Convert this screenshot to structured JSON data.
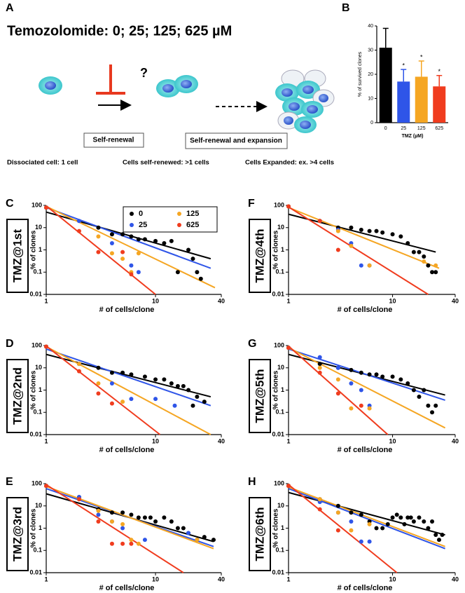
{
  "diagram": {
    "panel_label": "A",
    "title": "Temozolomide: 0; 25; 125; 625 µM",
    "question": "?",
    "boxes": [
      "Self-renewal",
      "Self-renewal and expansion"
    ],
    "captions": [
      "Dissociated cell: 1 cell",
      "Cells self-renewed: >1 cells",
      "Cells Expanded: ex. >4 cells"
    ]
  },
  "chart_data": [
    {
      "type": "bar",
      "panel_label": "B",
      "ylabel": "% of survived clones",
      "xlabel": "TMZ (µM)",
      "categories": [
        "0",
        "25",
        "125",
        "625"
      ],
      "values": [
        31,
        17,
        19,
        15
      ],
      "errors": [
        8,
        5,
        6.5,
        4.5
      ],
      "colors": [
        "#000000",
        "#2f55e8",
        "#f5a623",
        "#f03c1e"
      ],
      "value_annotations": [
        null,
        "*",
        "*",
        "*"
      ],
      "ylim": [
        0,
        40
      ],
      "yticks": [
        0,
        10,
        20,
        30,
        40
      ]
    },
    {
      "type": "scatter",
      "panel_label": "C",
      "tag": "TMZ@1st",
      "ylabel": "% of clones",
      "xlabel": "# of cells/clone",
      "log_scale": true,
      "legend": "top-right",
      "xlim": [
        1,
        40
      ],
      "xticks": [
        1,
        10,
        40
      ],
      "ylim": [
        0.01,
        100
      ],
      "yticks": [
        0.01,
        0.1,
        1,
        10,
        100
      ],
      "series": [
        {
          "name": "0",
          "color": "#000000",
          "x": [
            1,
            3,
            4,
            5,
            6,
            7,
            8,
            10,
            12,
            14,
            16,
            20,
            22,
            24,
            26
          ],
          "values": [
            80,
            10,
            5,
            5,
            4,
            3,
            3,
            2.5,
            2,
            2.5,
            0.1,
            1,
            0.4,
            0.1,
            0.05
          ],
          "fit_x": [
            1,
            32
          ],
          "fit_values": [
            50,
            0.4
          ]
        },
        {
          "name": "25",
          "color": "#2f55e8",
          "x": [
            1,
            2,
            4,
            6,
            7
          ],
          "values": [
            80,
            20,
            2,
            0.2,
            0.1
          ],
          "fit_x": [
            1,
            32
          ],
          "fit_values": [
            80,
            0.15
          ]
        },
        {
          "name": "125",
          "color": "#f5a623",
          "x": [
            1,
            3,
            4,
            5,
            6,
            7
          ],
          "values": [
            80,
            4,
            0.7,
            0.4,
            0.1,
            0.7
          ],
          "fit_x": [
            1,
            35
          ],
          "fit_values": [
            90,
            0.02
          ]
        },
        {
          "name": "625",
          "color": "#f03c1e",
          "x": [
            1,
            2,
            3,
            5,
            6
          ],
          "values": [
            80,
            7,
            0.8,
            0.8,
            0.08
          ],
          "fit_x": [
            1,
            10
          ],
          "fit_values": [
            95,
            0.01
          ]
        }
      ]
    },
    {
      "type": "scatter",
      "panel_label": "D",
      "tag": "TMZ@2nd",
      "ylabel": "% of clones",
      "xlabel": "# of cells/clone",
      "log_scale": true,
      "xlim": [
        1,
        40
      ],
      "xticks": [
        1,
        10,
        40
      ],
      "ylim": [
        0.01,
        100
      ],
      "yticks": [
        0.01,
        0.1,
        1,
        10,
        100
      ],
      "series": [
        {
          "color": "#000000",
          "x": [
            1,
            2,
            3,
            4,
            5,
            6,
            8,
            10,
            12,
            14,
            16,
            18,
            20,
            22,
            24,
            28
          ],
          "values": [
            90,
            15,
            10,
            6,
            6,
            5,
            4,
            3,
            3,
            2,
            1.5,
            1.5,
            1,
            0.2,
            0.5,
            0.3
          ],
          "fit_x": [
            1,
            32
          ],
          "fit_values": [
            40,
            0.5
          ]
        },
        {
          "color": "#2f55e8",
          "x": [
            1,
            2,
            4,
            6,
            10,
            15
          ],
          "values": [
            90,
            15,
            2,
            0.4,
            0.4,
            0.2
          ],
          "fit_x": [
            1,
            32
          ],
          "fit_values": [
            70,
            0.2
          ]
        },
        {
          "color": "#f5a623",
          "x": [
            1,
            2,
            3,
            5
          ],
          "values": [
            90,
            15,
            2,
            0.3
          ],
          "fit_x": [
            1,
            32
          ],
          "fit_values": [
            90,
            0.01
          ]
        },
        {
          "color": "#f03c1e",
          "x": [
            1,
            2,
            3,
            4
          ],
          "values": [
            90,
            7,
            0.7,
            0.25
          ],
          "fit_x": [
            1,
            11
          ],
          "fit_values": [
            95,
            0.01
          ]
        }
      ]
    },
    {
      "type": "scatter",
      "panel_label": "E",
      "tag": "TMZ@3rd",
      "ylabel": "% of clones",
      "xlabel": "# of cells/clone",
      "log_scale": true,
      "xlim": [
        1,
        40
      ],
      "xticks": [
        1,
        10,
        40
      ],
      "ylim": [
        0.01,
        100
      ],
      "yticks": [
        0.01,
        0.1,
        1,
        10,
        100
      ],
      "series": [
        {
          "color": "#000000",
          "x": [
            1,
            2,
            3,
            4,
            5,
            6,
            7,
            8,
            9,
            10,
            12,
            14,
            16,
            18,
            20,
            24,
            28,
            34
          ],
          "values": [
            80,
            25,
            7,
            5,
            5,
            4,
            3,
            3,
            3,
            2,
            3,
            2,
            1,
            1,
            0.6,
            0.3,
            0.4,
            0.3
          ],
          "fit_x": [
            1,
            34
          ],
          "fit_values": [
            35,
            0.25
          ]
        },
        {
          "color": "#2f55e8",
          "x": [
            1,
            2,
            3,
            4,
            5,
            8,
            20
          ],
          "values": [
            80,
            25,
            4,
            2,
            1,
            0.3,
            0.6
          ],
          "fit_x": [
            1,
            34
          ],
          "fit_values": [
            60,
            0.15
          ]
        },
        {
          "color": "#f5a623",
          "x": [
            1,
            2,
            3,
            4,
            5,
            6,
            7,
            24
          ],
          "values": [
            80,
            20,
            6,
            2,
            1.5,
            0.3,
            0.2,
            0.3
          ],
          "fit_x": [
            1,
            34
          ],
          "fit_values": [
            75,
            0.12
          ]
        },
        {
          "color": "#f03c1e",
          "x": [
            1,
            2,
            3,
            4,
            5,
            6
          ],
          "values": [
            80,
            20,
            2,
            0.2,
            0.2,
            0.2
          ],
          "fit_x": [
            1,
            18
          ],
          "fit_values": [
            90,
            0.01
          ]
        }
      ]
    },
    {
      "type": "scatter",
      "panel_label": "F",
      "tag": "TMZ@4th",
      "ylabel": "% of clones",
      "xlabel": "# of cells/clone",
      "log_scale": true,
      "xlim": [
        1,
        40
      ],
      "xticks": [
        1,
        10,
        40
      ],
      "ylim": [
        0.01,
        100
      ],
      "yticks": [
        0.01,
        0.1,
        1,
        10,
        100
      ],
      "series": [
        {
          "color": "#000000",
          "x": [
            1,
            2,
            3,
            4,
            5,
            6,
            7,
            8,
            10,
            12,
            14,
            16,
            18,
            20,
            22,
            24,
            26
          ],
          "values": [
            90,
            20,
            10,
            10,
            8,
            7,
            7,
            6,
            5,
            4,
            2,
            0.8,
            0.8,
            0.5,
            0.2,
            0.1,
            0.1
          ],
          "fit_x": [
            1,
            26
          ],
          "fit_values": [
            40,
            0.8
          ]
        },
        {
          "color": "#2f55e8",
          "x": [
            1,
            2,
            3,
            4,
            5,
            6
          ],
          "values": [
            90,
            20,
            8,
            2,
            0.2,
            0.2
          ]
        },
        {
          "color": "#f5a623",
          "x": [
            1,
            2,
            3,
            4,
            6,
            20,
            26
          ],
          "values": [
            90,
            20,
            7,
            1.5,
            0.2,
            0.3,
            0.2
          ],
          "fit_x": [
            1,
            28
          ],
          "fit_values": [
            80,
            0.15
          ]
        },
        {
          "color": "#f03c1e",
          "x": [
            1,
            2,
            3
          ],
          "values": [
            90,
            20,
            1
          ],
          "fit_x": [
            1,
            22
          ],
          "fit_values": [
            85,
            0.01
          ]
        }
      ]
    },
    {
      "type": "scatter",
      "panel_label": "G",
      "tag": "TMZ@5th",
      "ylabel": "% of clones",
      "xlabel": "# of cells/clone",
      "log_scale": true,
      "xlim": [
        1,
        40
      ],
      "xticks": [
        1,
        10,
        40
      ],
      "ylim": [
        0.01,
        100
      ],
      "yticks": [
        0.01,
        0.1,
        1,
        10,
        100
      ],
      "series": [
        {
          "color": "#000000",
          "x": [
            1,
            2,
            3,
            4,
            5,
            6,
            7,
            8,
            10,
            12,
            14,
            16,
            18,
            20,
            22,
            24,
            26
          ],
          "values": [
            80,
            15,
            10,
            8,
            6,
            5,
            5,
            4,
            4,
            3,
            2,
            1,
            0.5,
            1,
            0.2,
            0.1,
            0.2
          ],
          "fit_x": [
            1,
            32
          ],
          "fit_values": [
            40,
            0.6
          ]
        },
        {
          "color": "#2f55e8",
          "x": [
            1,
            2,
            3,
            4,
            5,
            6
          ],
          "values": [
            80,
            30,
            10,
            2,
            1,
            0.2
          ],
          "fit_x": [
            1,
            32
          ],
          "fit_values": [
            70,
            0.35
          ]
        },
        {
          "color": "#f5a623",
          "x": [
            1,
            2,
            3,
            4,
            6
          ],
          "values": [
            80,
            10,
            3,
            0.15,
            0.15
          ],
          "fit_x": [
            1,
            32
          ],
          "fit_values": [
            80,
            0.02
          ]
        },
        {
          "color": "#f03c1e",
          "x": [
            1,
            2,
            3,
            5
          ],
          "values": [
            80,
            6,
            0.7,
            0.2
          ],
          "fit_x": [
            1,
            9
          ],
          "fit_values": [
            95,
            0.01
          ]
        }
      ]
    },
    {
      "type": "scatter",
      "panel_label": "H",
      "tag": "TMZ@6th",
      "ylabel": "% of clones",
      "xlabel": "# of cells/clone",
      "log_scale": true,
      "xlim": [
        1,
        40
      ],
      "xticks": [
        1,
        10,
        40
      ],
      "ylim": [
        0.01,
        100
      ],
      "yticks": [
        0.01,
        0.1,
        1,
        10,
        100
      ],
      "series": [
        {
          "color": "#000000",
          "x": [
            1,
            2,
            3,
            4,
            5,
            6,
            7,
            8,
            9,
            10,
            11,
            12,
            13,
            14,
            15,
            16,
            18,
            20,
            22,
            24,
            26,
            28,
            30
          ],
          "values": [
            80,
            20,
            10,
            5,
            4,
            2,
            1,
            1,
            1.5,
            3,
            4,
            3,
            1.5,
            3,
            3,
            2,
            3,
            2,
            1,
            2,
            0.5,
            0.3,
            0.5
          ],
          "fit_x": [
            1,
            32
          ],
          "fit_values": [
            40,
            0.5
          ]
        },
        {
          "color": "#2f55e8",
          "x": [
            1,
            2,
            3,
            4,
            5,
            6
          ],
          "values": [
            80,
            15,
            5,
            2,
            0.25,
            0.25
          ],
          "fit_x": [
            1,
            32
          ],
          "fit_values": [
            60,
            0.12
          ]
        },
        {
          "color": "#f5a623",
          "x": [
            1,
            2,
            3,
            4,
            6
          ],
          "values": [
            80,
            20,
            5,
            0.8,
            1.5
          ],
          "fit_x": [
            1,
            32
          ],
          "fit_values": [
            70,
            0.15
          ]
        },
        {
          "color": "#f03c1e",
          "x": [
            1,
            2,
            3
          ],
          "values": [
            80,
            7,
            0.8
          ],
          "fit_x": [
            1,
            11
          ],
          "fit_values": [
            90,
            0.01
          ]
        }
      ]
    }
  ]
}
